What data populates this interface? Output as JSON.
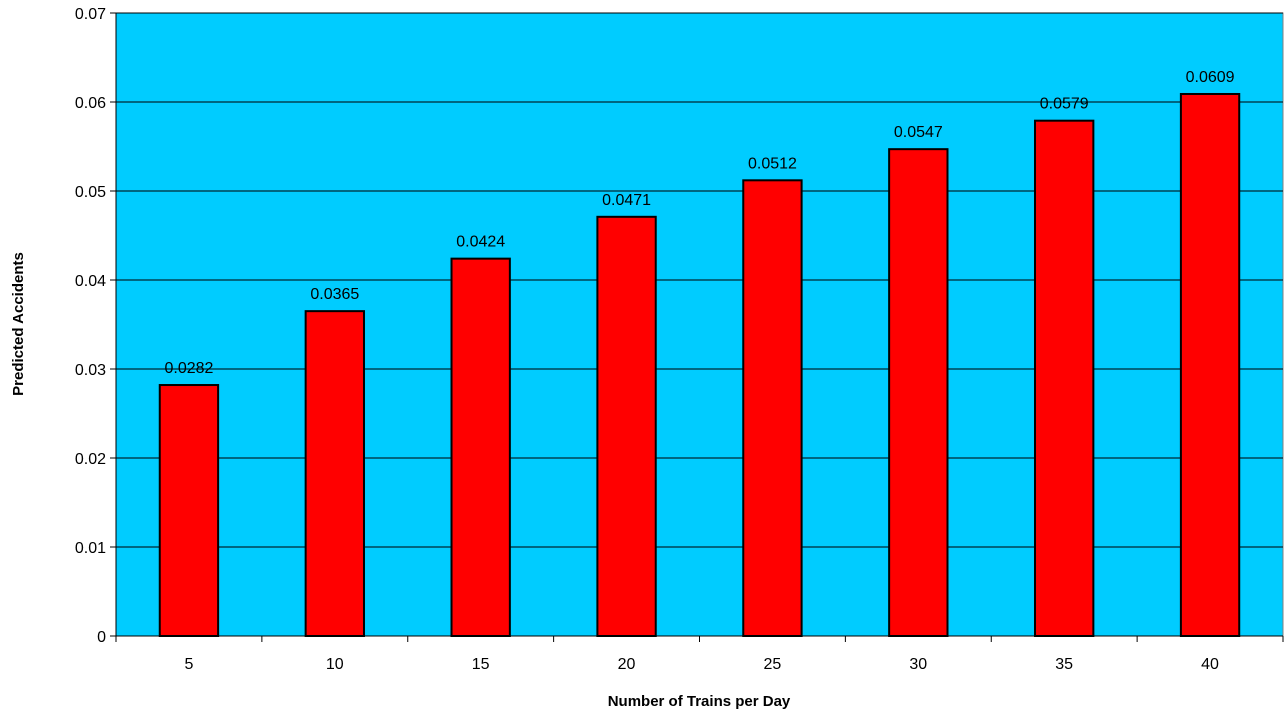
{
  "chart_data": {
    "type": "bar",
    "title": "",
    "xlabel": "Number of Trains per Day",
    "ylabel": "Predicted Accidents",
    "categories": [
      "5",
      "10",
      "15",
      "20",
      "25",
      "30",
      "35",
      "40"
    ],
    "values": [
      0.0282,
      0.0365,
      0.0424,
      0.0471,
      0.0512,
      0.0547,
      0.0579,
      0.0609
    ],
    "value_labels": [
      "0.0282",
      "0.0365",
      "0.0424",
      "0.0471",
      "0.0512",
      "0.0547",
      "0.0579",
      "0.0609"
    ],
    "ylim": [
      0,
      0.07
    ],
    "y_ticks": [
      0,
      0.01,
      0.02,
      0.03,
      0.04,
      0.05,
      0.06,
      0.07
    ],
    "y_tick_labels": [
      "0",
      "0.01",
      "0.02",
      "0.03",
      "0.04",
      "0.05",
      "0.06",
      "0.07"
    ],
    "grid": true,
    "legend": "none",
    "colors": {
      "plot_background": "#00ccff",
      "bar_fill": "#ff0000",
      "bar_stroke": "#000000",
      "grid": "#000000"
    }
  }
}
